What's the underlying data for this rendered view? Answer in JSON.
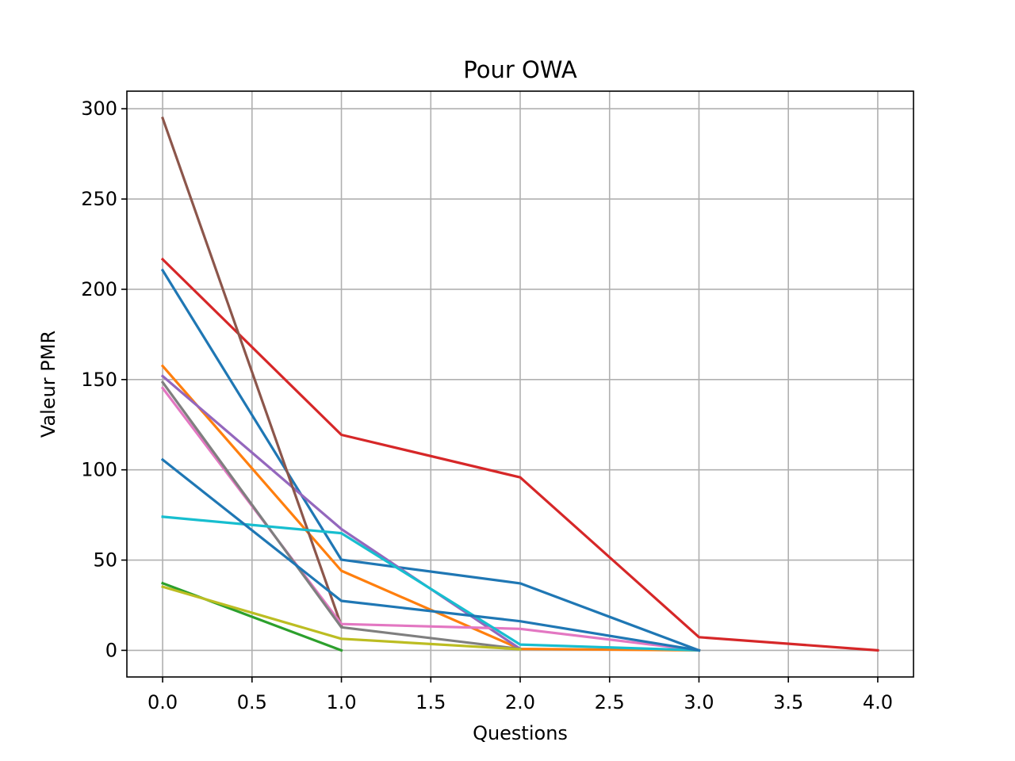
{
  "chart_data": {
    "type": "line",
    "title": "Pour OWA",
    "xlabel": "Questions",
    "ylabel": "Valeur PMR",
    "xlim": [
      -0.2,
      4.2
    ],
    "ylim": [
      -14.75,
      309.75
    ],
    "xticks": [
      0.0,
      0.5,
      1.0,
      1.5,
      2.0,
      2.5,
      3.0,
      3.5,
      4.0
    ],
    "xtick_labels": [
      "0.0",
      "0.5",
      "1.0",
      "1.5",
      "2.0",
      "2.5",
      "3.0",
      "3.5",
      "4.0"
    ],
    "yticks": [
      0,
      50,
      100,
      150,
      200,
      250,
      300
    ],
    "ytick_labels": [
      "0",
      "50",
      "100",
      "150",
      "200",
      "250",
      "300"
    ],
    "grid": true,
    "series": [
      {
        "color": "#1f77b4",
        "x": [
          0,
          1,
          2,
          3
        ],
        "values": [
          210.5,
          50.2,
          37.1,
          0
        ]
      },
      {
        "color": "#ff7f0e",
        "x": [
          0,
          1,
          2,
          3
        ],
        "values": [
          157.5,
          44.1,
          0.8,
          0
        ]
      },
      {
        "color": "#2ca02c",
        "x": [
          0,
          1
        ],
        "values": [
          37.2,
          0
        ]
      },
      {
        "color": "#d62728",
        "x": [
          0,
          1,
          2,
          3,
          4
        ],
        "values": [
          216.6,
          119.4,
          95.8,
          7.3,
          0
        ]
      },
      {
        "color": "#9467bd",
        "x": [
          0,
          1,
          2
        ],
        "values": [
          151.9,
          67.2,
          0.8
        ]
      },
      {
        "color": "#8c564b",
        "x": [
          0,
          1
        ],
        "values": [
          294.8,
          13.6
        ]
      },
      {
        "color": "#e377c2",
        "x": [
          0,
          1,
          2,
          3
        ],
        "values": [
          145.3,
          14.6,
          11.9,
          0
        ]
      },
      {
        "color": "#7f7f7f",
        "x": [
          0,
          1,
          2
        ],
        "values": [
          148.5,
          12.8,
          0.8
        ]
      },
      {
        "color": "#bcbd22",
        "x": [
          0,
          1,
          2
        ],
        "values": [
          35.2,
          6.4,
          0.6
        ]
      },
      {
        "color": "#17becf",
        "x": [
          0,
          1,
          2,
          3
        ],
        "values": [
          74.0,
          64.9,
          3.2,
          0
        ]
      },
      {
        "color": "#1f77b4",
        "x": [
          0,
          1,
          2,
          3
        ],
        "values": [
          105.6,
          27.4,
          16.1,
          0
        ]
      }
    ]
  }
}
